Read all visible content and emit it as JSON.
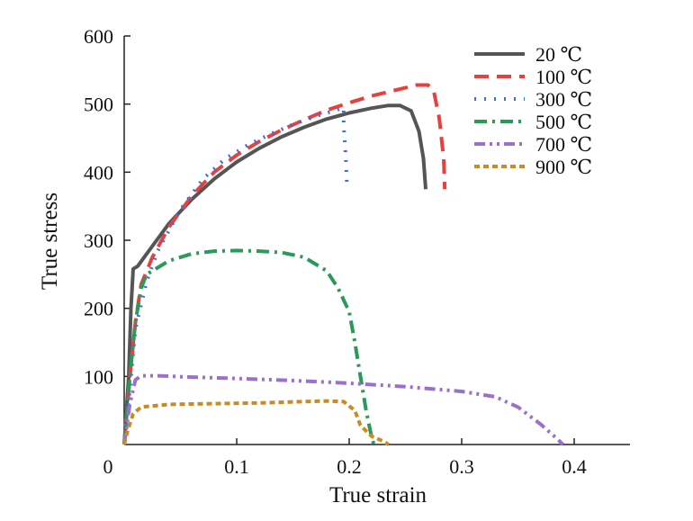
{
  "chart_data": {
    "type": "line",
    "title": "",
    "xlabel": "True strain",
    "ylabel": "True stress",
    "xlim": [
      0,
      0.45
    ],
    "ylim": [
      0,
      600
    ],
    "xticks": [
      0,
      0.1,
      0.2,
      0.3,
      0.4
    ],
    "xtick_labels": [
      "0",
      "0.1",
      "0.2",
      "0.3",
      "0.4"
    ],
    "yticks": [
      100,
      200,
      300,
      400,
      500,
      600
    ],
    "ytick_labels": [
      "100",
      "200",
      "300",
      "400",
      "500",
      "600"
    ],
    "grid": false,
    "legend_position": "top-right",
    "series": [
      {
        "name": "20 ℃",
        "color": "#555555",
        "dash": "solid",
        "points": [
          [
            0,
            0
          ],
          [
            0.004,
            100
          ],
          [
            0.006,
            200
          ],
          [
            0.008,
            258
          ],
          [
            0.012,
            262
          ],
          [
            0.02,
            280
          ],
          [
            0.04,
            325
          ],
          [
            0.06,
            360
          ],
          [
            0.08,
            390
          ],
          [
            0.1,
            415
          ],
          [
            0.12,
            435
          ],
          [
            0.14,
            452
          ],
          [
            0.16,
            466
          ],
          [
            0.18,
            478
          ],
          [
            0.2,
            487
          ],
          [
            0.22,
            494
          ],
          [
            0.235,
            498
          ],
          [
            0.245,
            498
          ],
          [
            0.255,
            490
          ],
          [
            0.262,
            460
          ],
          [
            0.266,
            420
          ],
          [
            0.268,
            375
          ]
        ]
      },
      {
        "name": "100 ℃",
        "color": "#e8403c",
        "dash": "long-dash",
        "points": [
          [
            0,
            0
          ],
          [
            0.005,
            100
          ],
          [
            0.01,
            180
          ],
          [
            0.015,
            235
          ],
          [
            0.025,
            275
          ],
          [
            0.04,
            320
          ],
          [
            0.06,
            365
          ],
          [
            0.08,
            400
          ],
          [
            0.1,
            425
          ],
          [
            0.12,
            445
          ],
          [
            0.14,
            462
          ],
          [
            0.16,
            477
          ],
          [
            0.18,
            491
          ],
          [
            0.2,
            502
          ],
          [
            0.22,
            512
          ],
          [
            0.24,
            520
          ],
          [
            0.26,
            528
          ],
          [
            0.27,
            528
          ],
          [
            0.275,
            520
          ],
          [
            0.28,
            480
          ],
          [
            0.284,
            420
          ],
          [
            0.285,
            375
          ]
        ]
      },
      {
        "name": "300 ℃",
        "color": "#3c6fd8",
        "dash": "dotted",
        "points": [
          [
            0,
            0
          ],
          [
            0.005,
            80
          ],
          [
            0.01,
            170
          ],
          [
            0.02,
            240
          ],
          [
            0.03,
            285
          ],
          [
            0.05,
            345
          ],
          [
            0.07,
            390
          ],
          [
            0.09,
            420
          ],
          [
            0.11,
            440
          ],
          [
            0.13,
            456
          ],
          [
            0.15,
            470
          ],
          [
            0.17,
            482
          ],
          [
            0.19,
            492
          ],
          [
            0.195,
            495
          ],
          [
            0.195,
            470
          ],
          [
            0.197,
            420
          ],
          [
            0.198,
            380
          ]
        ]
      },
      {
        "name": "500 ℃",
        "color": "#2a9a58",
        "dash": "dash-dot",
        "points": [
          [
            0,
            0
          ],
          [
            0.005,
            100
          ],
          [
            0.01,
            180
          ],
          [
            0.015,
            230
          ],
          [
            0.02,
            250
          ],
          [
            0.04,
            270
          ],
          [
            0.06,
            280
          ],
          [
            0.08,
            284
          ],
          [
            0.1,
            285
          ],
          [
            0.12,
            284
          ],
          [
            0.14,
            282
          ],
          [
            0.16,
            275
          ],
          [
            0.18,
            255
          ],
          [
            0.19,
            230
          ],
          [
            0.2,
            195
          ],
          [
            0.205,
            150
          ],
          [
            0.21,
            100
          ],
          [
            0.215,
            50
          ],
          [
            0.22,
            10
          ],
          [
            0.222,
            0
          ]
        ]
      },
      {
        "name": "700 ℃",
        "color": "#9a70cc",
        "dash": "dash-dot-dot",
        "points": [
          [
            0,
            0
          ],
          [
            0.005,
            60
          ],
          [
            0.01,
            95
          ],
          [
            0.015,
            101
          ],
          [
            0.03,
            101
          ],
          [
            0.06,
            99
          ],
          [
            0.1,
            97
          ],
          [
            0.15,
            94
          ],
          [
            0.2,
            90
          ],
          [
            0.25,
            85
          ],
          [
            0.3,
            78
          ],
          [
            0.33,
            70
          ],
          [
            0.35,
            55
          ],
          [
            0.37,
            30
          ],
          [
            0.385,
            8
          ],
          [
            0.39,
            0
          ]
        ]
      },
      {
        "name": "900 ℃",
        "color": "#c98b25",
        "dash": "short-dash",
        "points": [
          [
            0,
            0
          ],
          [
            0.003,
            20
          ],
          [
            0.008,
            45
          ],
          [
            0.015,
            55
          ],
          [
            0.04,
            59
          ],
          [
            0.08,
            60
          ],
          [
            0.12,
            61
          ],
          [
            0.16,
            63
          ],
          [
            0.18,
            64
          ],
          [
            0.195,
            63
          ],
          [
            0.205,
            50
          ],
          [
            0.21,
            28
          ],
          [
            0.22,
            12
          ],
          [
            0.23,
            5
          ],
          [
            0.235,
            0
          ]
        ]
      }
    ]
  }
}
